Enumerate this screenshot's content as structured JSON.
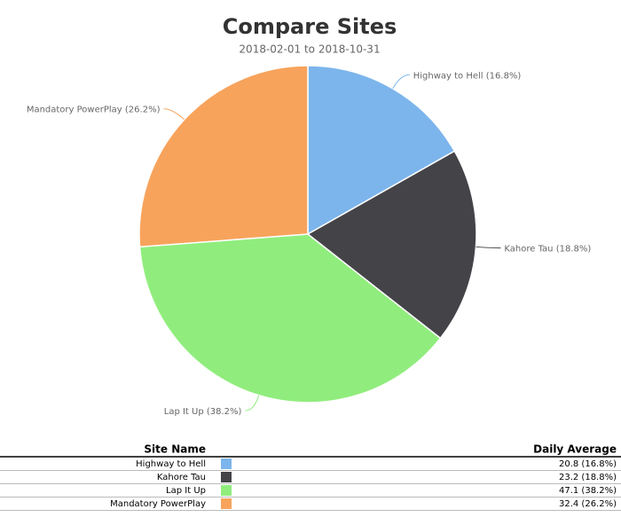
{
  "chart_data": {
    "type": "pie",
    "title": "Compare Sites",
    "subtitle": "2018-02-01 to 2018-10-31",
    "categories": [
      "Highway to Hell",
      "Kahore Tau",
      "Lap It Up",
      "Mandatory PowerPlay"
    ],
    "values": [
      16.8,
      18.8,
      38.2,
      26.2
    ],
    "value_labels": [
      "Highway to Hell (16.8%)",
      "Kahore Tau (18.8%)",
      "Lap It Up (38.2%)",
      "Mandatory PowerPlay (26.2%)"
    ],
    "colors": [
      "#7cb5ec",
      "#434348",
      "#90ed7d",
      "#f7a35c"
    ]
  },
  "table": {
    "columns": [
      "Site Name",
      "Daily Average"
    ],
    "rows": [
      [
        "Highway to Hell",
        "20.8 (16.8%)"
      ],
      [
        "Kahore Tau",
        "23.2 (18.8%)"
      ],
      [
        "Lap It Up",
        "47.1 (38.2%)"
      ],
      [
        "Mandatory PowerPlay",
        "32.4 (26.2%)"
      ]
    ]
  }
}
